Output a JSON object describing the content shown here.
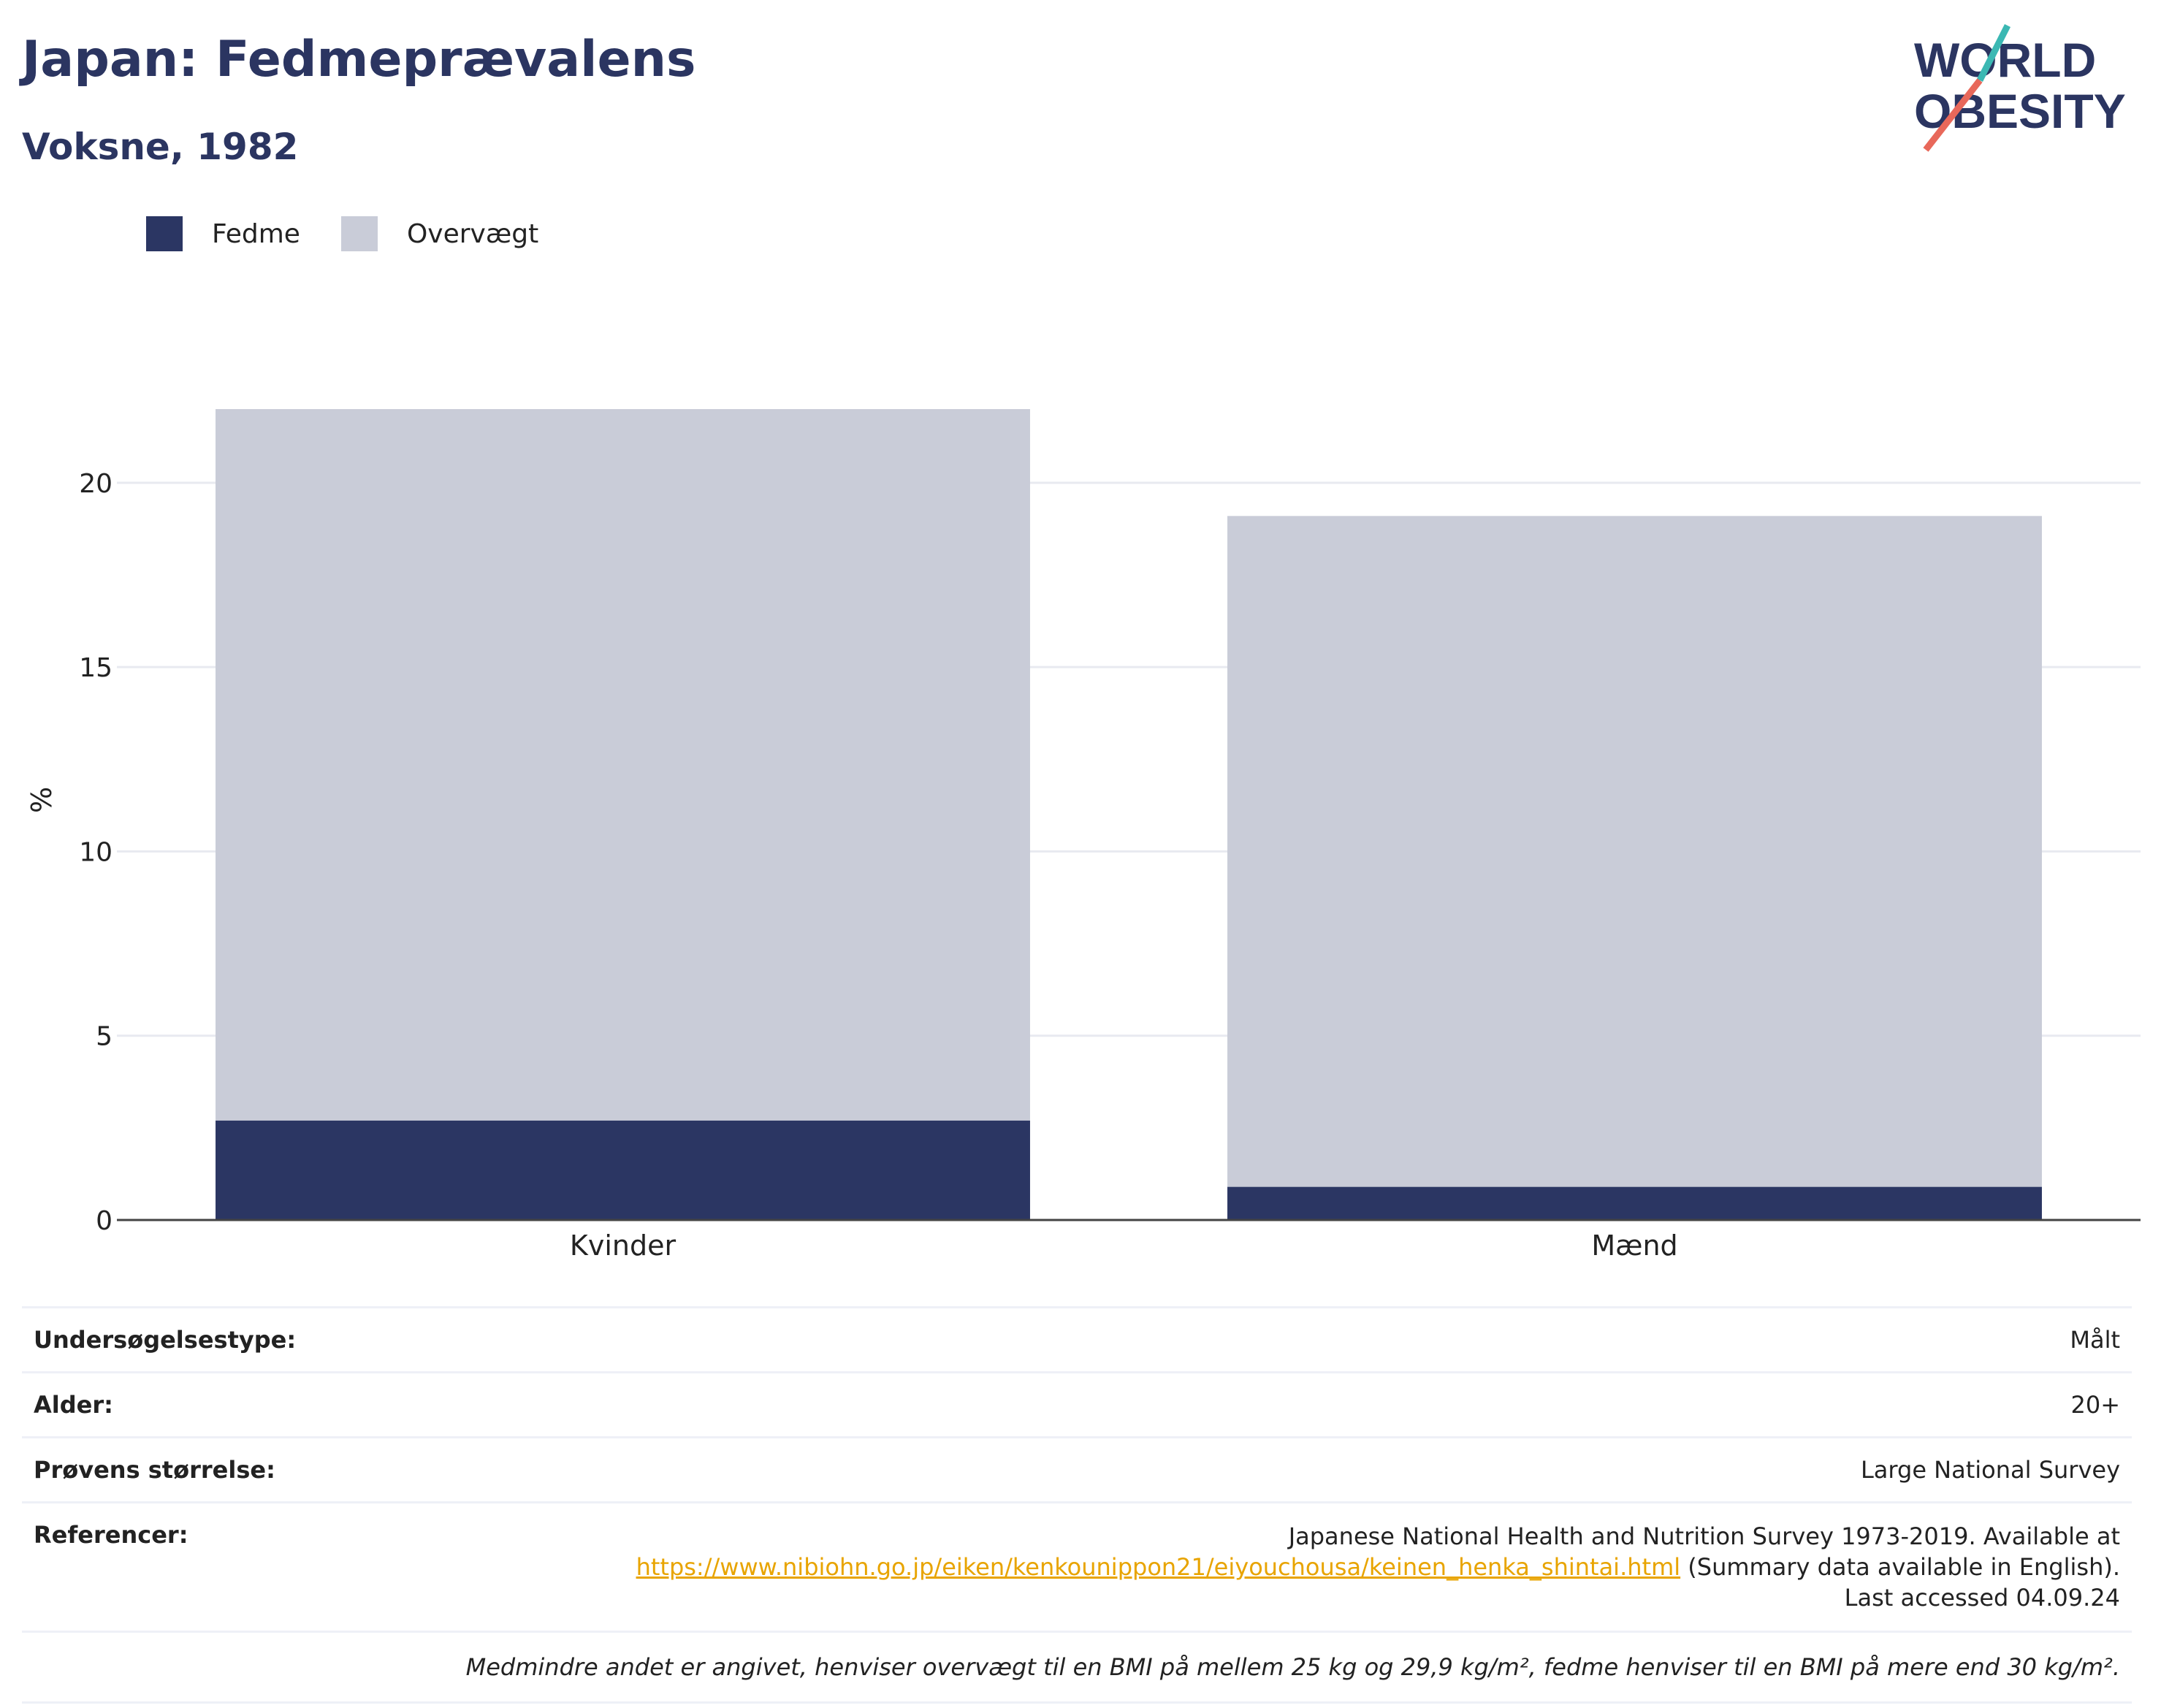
{
  "header": {
    "title": "Japan: Fedmeprævalens",
    "subtitle": "Voksne, 1982",
    "logo_line1": "WORLD",
    "logo_line2": "OBESITY"
  },
  "legend": [
    {
      "label": "Fedme",
      "color": "#2b3663"
    },
    {
      "label": "Overvægt",
      "color": "#c9ccd8"
    }
  ],
  "chart_data": {
    "type": "bar",
    "stacked": true,
    "categories": [
      "Kvinder",
      "Mænd"
    ],
    "series": [
      {
        "name": "Fedme",
        "values": [
          2.7,
          0.9
        ],
        "color": "#2b3663"
      },
      {
        "name": "Overvægt",
        "values": [
          19.3,
          18.2
        ],
        "color": "#c9ccd8"
      }
    ],
    "ylabel": "%",
    "ylim": [
      0,
      22
    ],
    "yticks": [
      0,
      5,
      10,
      15,
      20
    ],
    "grid": true,
    "legend_position": "top-left"
  },
  "meta": {
    "survey_type_label": "Undersøgelsestype:",
    "survey_type_value": "Målt",
    "age_label": "Alder:",
    "age_value": "20+",
    "sample_label": "Prøvens størrelse:",
    "sample_value": "Large National Survey",
    "references_label": "Referencer:",
    "references_text_1": "Japanese National Health and Nutrition Survey 1973-2019. Available at",
    "references_link": "https://www.nibiohn.go.jp/eiken/kenkounippon21/eiyouchousa/keinen_henka_shintai.html",
    "references_text_2": " (Summary data available in English). Last accessed 04.09.24",
    "note": "Medmindre andet er angivet, henviser overvægt til en BMI på mellem 25 kg og 29,9 kg/m², fedme henviser til en BMI på mere end 30 kg/m²."
  }
}
